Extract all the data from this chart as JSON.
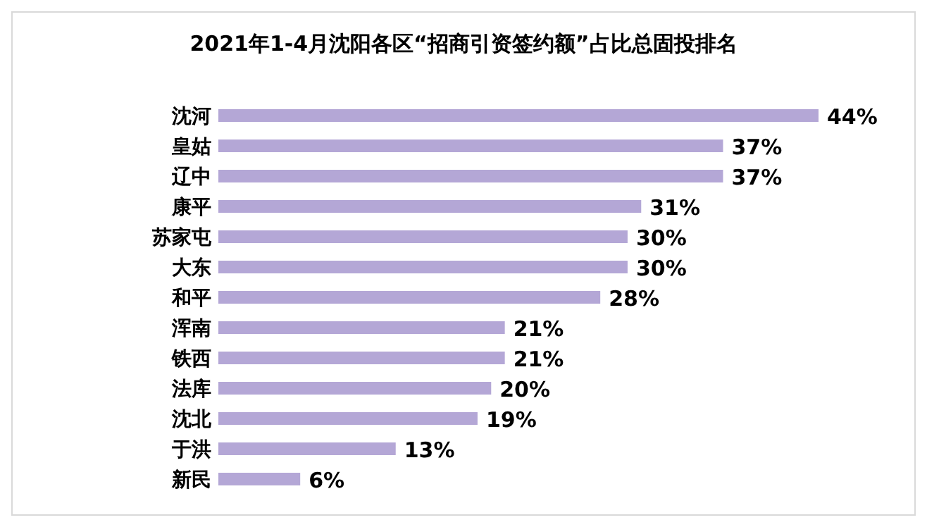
{
  "chart_data": {
    "type": "bar",
    "orientation": "horizontal",
    "title": "2021年1-4月沈阳各区“招商引资签约额”占比总固投排名",
    "categories": [
      "沈河",
      "皇姑",
      "辽中",
      "康平",
      "苏家屯",
      "大东",
      "和平",
      "浑南",
      "铁西",
      "法库",
      "沈北",
      "于洪",
      "新民"
    ],
    "values": [
      44,
      37,
      37,
      31,
      30,
      30,
      28,
      21,
      21,
      20,
      19,
      13,
      6
    ],
    "value_labels": [
      "44%",
      "37%",
      "37%",
      "31%",
      "30%",
      "30%",
      "28%",
      "21%",
      "21%",
      "20%",
      "19%",
      "13%",
      "6%"
    ],
    "color": "#b4a7d6"
  }
}
